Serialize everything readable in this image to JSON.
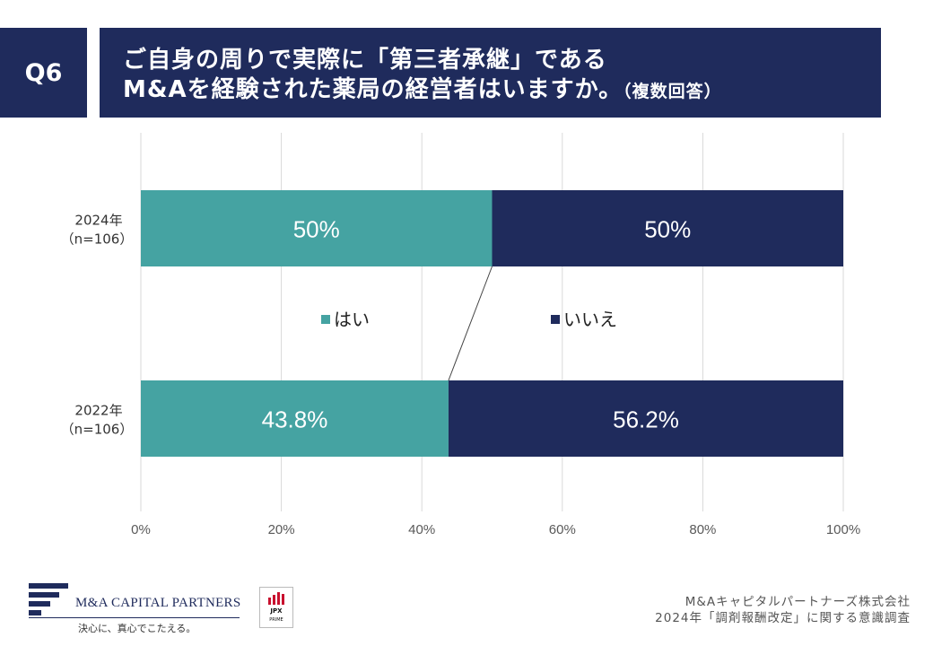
{
  "header": {
    "badge": "Q6",
    "title_line1": "ご自身の周りで実際に「第三者承継」である",
    "title_line2": "M&Aを経験された薬局の経営者はいますか。",
    "title_suffix": "（複数回答）"
  },
  "chart_data": {
    "type": "bar",
    "orientation": "horizontal",
    "stacked": true,
    "percent_stacked": true,
    "categories": [
      {
        "label": "2024年",
        "sublabel": "（n=106）"
      },
      {
        "label": "2022年",
        "sublabel": "（n=106）"
      }
    ],
    "series": [
      {
        "name": "はい",
        "values": [
          50,
          43.8
        ],
        "labels": [
          "50%",
          "43.8%"
        ],
        "color": "#45a3a2"
      },
      {
        "name": "いいえ",
        "values": [
          50,
          56.2
        ],
        "labels": [
          "50%",
          "56.2%"
        ],
        "color": "#1f2b5c"
      }
    ],
    "xlim": [
      0,
      100
    ],
    "xticks": [
      "0%",
      "20%",
      "40%",
      "60%",
      "80%",
      "100%"
    ],
    "grid": true,
    "legend": "center",
    "connector_lines": true
  },
  "footer": {
    "company_logo_text": "M&A CAPITAL PARTNERS",
    "tagline": "決心に、真心でこたえる。",
    "jpx_text": "JPX",
    "jpx_sub": "PRIME",
    "source_line1": "M&Aキャピタルパートナーズ株式会社",
    "source_line2": "2024年「調剤報酬改定」に関する意識調査"
  }
}
